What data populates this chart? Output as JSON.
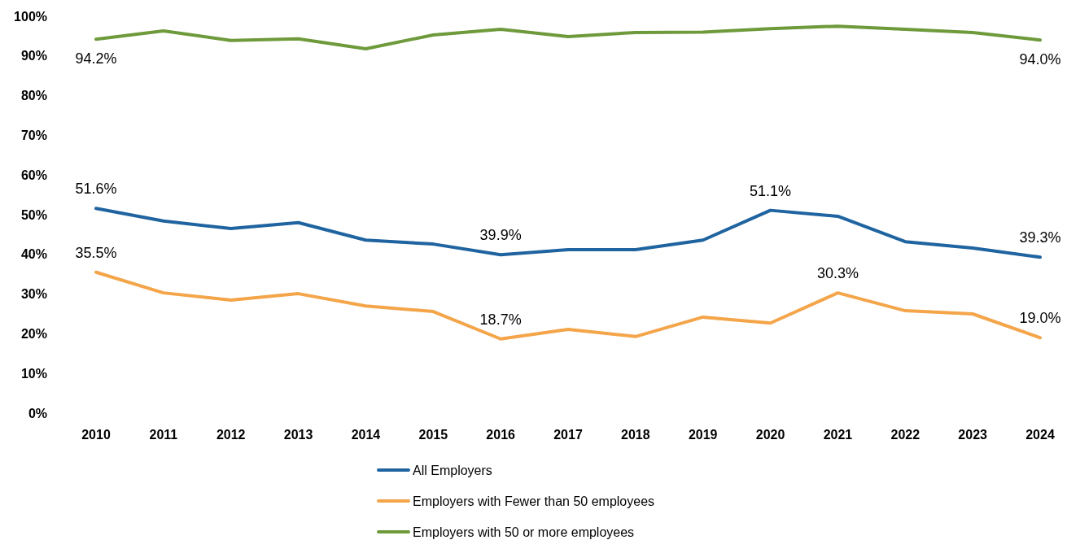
{
  "chart_data": {
    "type": "line",
    "categories": [
      "2010",
      "2011",
      "2012",
      "2013",
      "2014",
      "2015",
      "2016",
      "2017",
      "2018",
      "2019",
      "2020",
      "2021",
      "2022",
      "2023",
      "2024"
    ],
    "series": [
      {
        "name": "All Employers",
        "color": "#1f64a0",
        "values": [
          51.6,
          48.4,
          46.5,
          48.0,
          43.6,
          42.6,
          39.9,
          41.2,
          41.2,
          43.6,
          51.1,
          49.6,
          43.2,
          41.6,
          39.3
        ],
        "value_labels": [
          "51.6%",
          null,
          null,
          null,
          null,
          null,
          "39.9%",
          null,
          null,
          null,
          "51.1%",
          null,
          null,
          null,
          "39.3%"
        ]
      },
      {
        "name": "Employers with Fewer than 50 employees",
        "color": "#f4a54a",
        "values": [
          35.5,
          30.3,
          28.5,
          30.1,
          27.0,
          25.6,
          18.7,
          21.1,
          19.3,
          24.2,
          22.7,
          30.3,
          25.8,
          25.0,
          19.0
        ],
        "value_labels": [
          "35.5%",
          null,
          null,
          null,
          null,
          null,
          "18.7%",
          null,
          null,
          null,
          null,
          "30.3%",
          null,
          null,
          "19.0%"
        ]
      },
      {
        "name": "Employers with 50 or more employees",
        "color": "#6e9a3b",
        "values": [
          94.2,
          96.3,
          93.9,
          94.3,
          91.8,
          95.3,
          96.7,
          94.9,
          95.9,
          96.0,
          96.9,
          97.5,
          96.7,
          95.9,
          94.0
        ],
        "value_labels": [
          "94.2%",
          null,
          null,
          null,
          null,
          null,
          null,
          null,
          null,
          null,
          null,
          null,
          null,
          null,
          "94.0%"
        ]
      }
    ],
    "ylim": [
      0,
      100
    ],
    "yticks": [
      {
        "value": 0,
        "label": "0%"
      },
      {
        "value": 10,
        "label": "10%"
      },
      {
        "value": 20,
        "label": "20%"
      },
      {
        "value": 30,
        "label": "30%"
      },
      {
        "value": 40,
        "label": "40%"
      },
      {
        "value": 50,
        "label": "50%"
      },
      {
        "value": 60,
        "label": "60%"
      },
      {
        "value": 70,
        "label": "70%"
      },
      {
        "value": 80,
        "label": "80%"
      },
      {
        "value": 90,
        "label": "90%"
      },
      {
        "value": 100,
        "label": "100%"
      }
    ],
    "legend": "bottom",
    "marker": "none",
    "line_style": "solid"
  }
}
